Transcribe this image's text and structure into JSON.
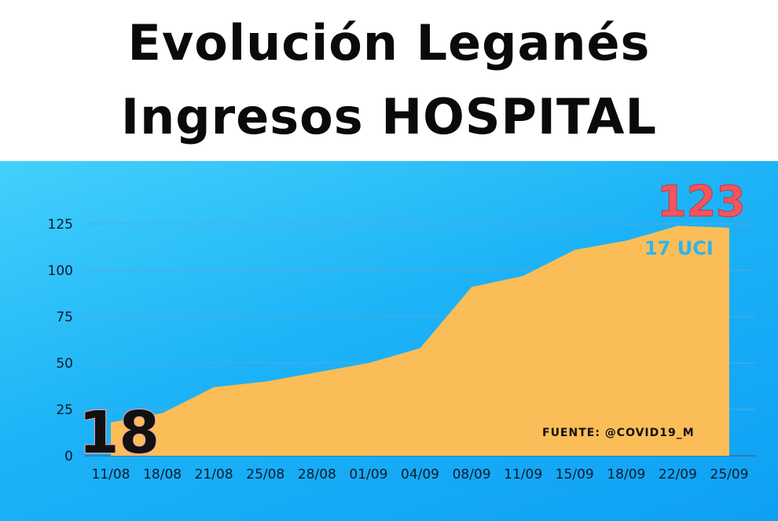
{
  "chart_data": {
    "type": "area",
    "title_line1": "Evolución Leganés",
    "title_line2": "Ingresos HOSPITAL",
    "categories": [
      "11/08",
      "18/08",
      "21/08",
      "25/08",
      "28/08",
      "01/09",
      "04/09",
      "08/09",
      "11/09",
      "15/09",
      "18/09",
      "22/09",
      "25/09"
    ],
    "values": [
      18,
      23,
      37,
      40,
      45,
      50,
      58,
      91,
      97,
      111,
      116,
      124,
      123
    ],
    "yticks": [
      0,
      25,
      50,
      75,
      100,
      125
    ],
    "ylim": [
      0,
      125
    ],
    "grid": true,
    "series_color": "#fbbd57",
    "annotations": {
      "start_value": "18",
      "end_value": "123",
      "end_sublabel": "17 UCI",
      "source": "FUENTE: @COVID19_M"
    }
  }
}
